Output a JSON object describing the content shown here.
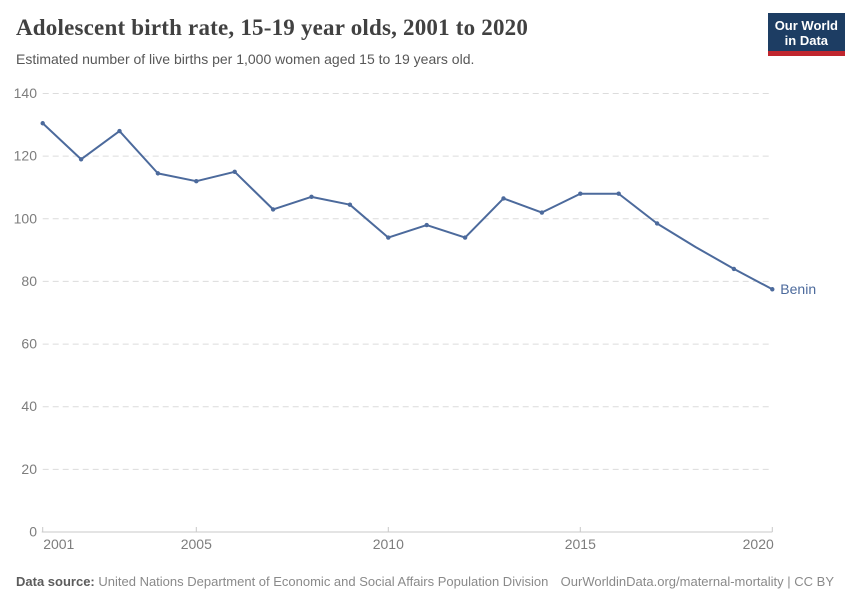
{
  "header": {
    "title": "Adolescent birth rate, 15-19 year olds, 2001 to 2020",
    "subtitle": "Estimated number of live births per 1,000 women aged 15 to 19 years old."
  },
  "logo": {
    "line1": "Our World",
    "line2": "in Data"
  },
  "footer": {
    "source_label": "Data source:",
    "source_text": "United Nations Department of Economic and Social Affairs Population Division",
    "link_text": "OurWorldinData.org/maternal-mortality | CC BY"
  },
  "colors": {
    "series_line": "#4C6A9C",
    "logo_bg": "#1d3d63",
    "logo_bar": "#c0262e",
    "gridline": "#dcdcdc",
    "axis": "#c8c8c8",
    "tick_text": "#7d7d7d",
    "title_text": "#414141",
    "subtitle_text": "#575757"
  },
  "chart_data": {
    "type": "line",
    "title": "Adolescent birth rate, 15-19 year olds, 2001 to 2020",
    "subtitle": "Estimated number of live births per 1,000 women aged 15 to 19 years old.",
    "xlabel": "",
    "ylabel": "",
    "xlim": [
      2001,
      2020
    ],
    "ylim": [
      0,
      140
    ],
    "xticks": [
      2001,
      2005,
      2010,
      2015,
      2020
    ],
    "yticks": [
      0,
      20,
      40,
      60,
      80,
      100,
      120,
      140
    ],
    "grid": "horizontal-dashed",
    "legend_position": "end-of-line-label",
    "series": [
      {
        "name": "Benin",
        "color": "#4C6A9C",
        "x": [
          2001,
          2002,
          2003,
          2004,
          2005,
          2006,
          2007,
          2008,
          2009,
          2010,
          2011,
          2012,
          2013,
          2014,
          2015,
          2016,
          2017,
          2018,
          2019,
          2020
        ],
        "values": [
          130.5,
          119,
          128,
          114.5,
          112,
          115,
          103,
          107,
          104.5,
          94,
          98,
          94,
          106.5,
          102,
          108,
          108,
          98.5,
          91,
          84,
          77.5
        ],
        "years_without_marker": [
          2018
        ]
      }
    ]
  }
}
